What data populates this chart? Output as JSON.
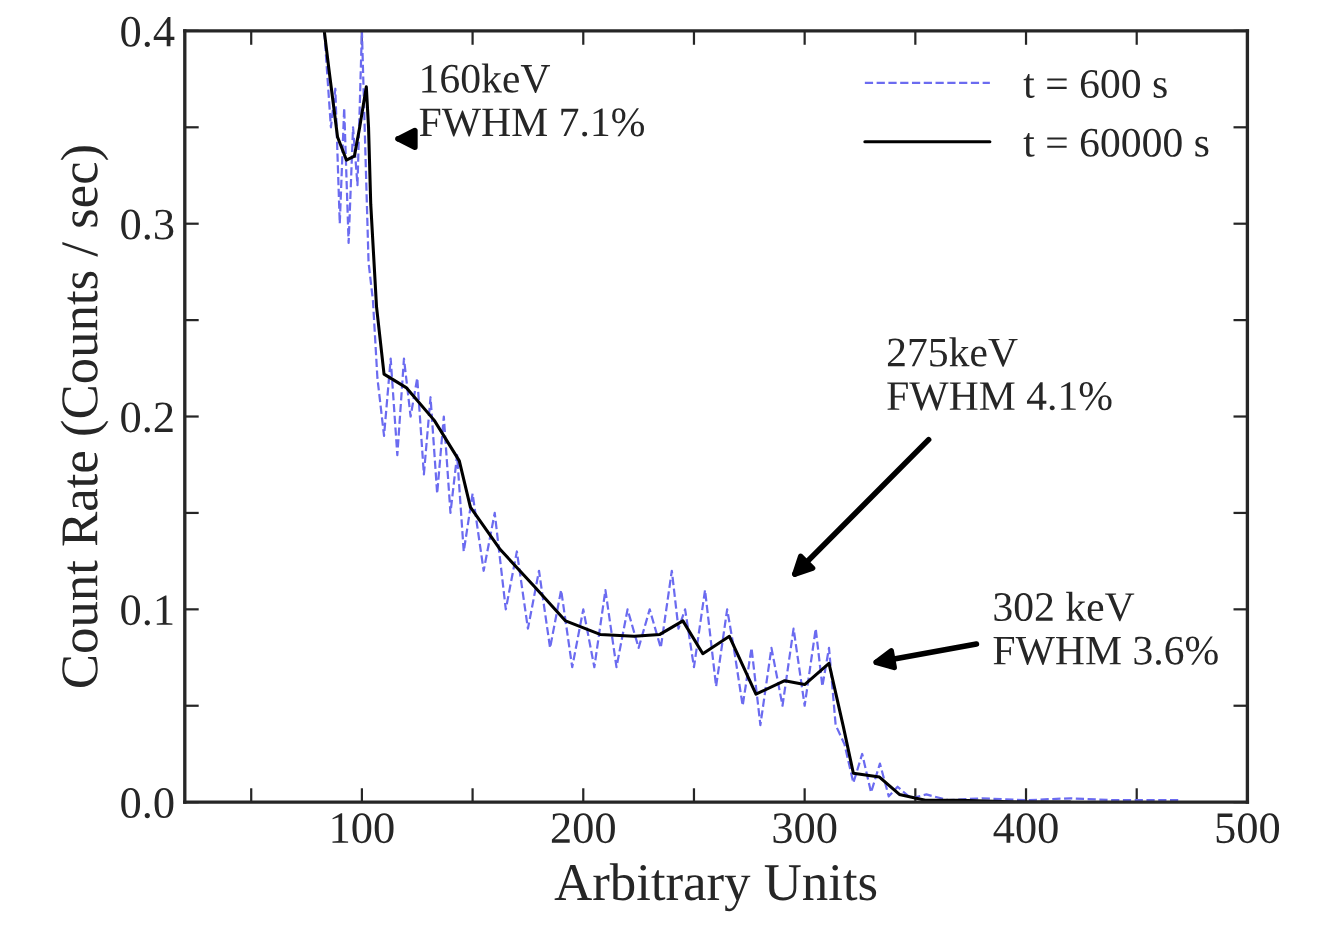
{
  "chart_data": {
    "type": "line",
    "xlabel": "Arbitrary Units",
    "ylabel": "Count Rate (Counts / sec)",
    "xlim": [
      20,
      500
    ],
    "ylim": [
      0,
      0.4
    ],
    "xticks": [
      {
        "value": 50,
        "label": null
      },
      100,
      {
        "value": 150,
        "label": null
      },
      200,
      {
        "value": 250,
        "label": null
      },
      300,
      {
        "value": 350,
        "label": null
      },
      400,
      {
        "value": 450,
        "label": null
      },
      500
    ],
    "yticks": [
      {
        "value": 0,
        "label": "0.0"
      },
      {
        "value": 0.05,
        "label": null
      },
      0.1,
      {
        "value": 0.15,
        "label": null
      },
      0.2,
      {
        "value": 0.25,
        "label": null
      },
      0.3,
      {
        "value": 0.35,
        "label": null
      },
      0.4
    ],
    "grid": false,
    "legend": "top right",
    "marker": "none",
    "series": [
      {
        "name": "t = 600 s",
        "color": "#6b6bf0",
        "line_style": "dashed",
        "x": [
          83,
          86,
          88,
          90,
          92,
          94,
          96,
          98,
          100,
          101,
          103,
          105,
          107,
          110,
          113,
          116,
          119,
          122,
          125,
          128,
          131,
          134,
          137,
          140,
          143,
          146,
          150,
          155,
          160,
          165,
          170,
          175,
          180,
          185,
          190,
          195,
          200,
          205,
          210,
          215,
          220,
          225,
          230,
          235,
          240,
          243,
          246,
          250,
          255,
          260,
          265,
          268,
          272,
          276,
          280,
          285,
          290,
          295,
          300,
          305,
          308,
          311,
          314,
          318,
          322,
          326,
          330,
          334,
          338,
          342,
          348,
          355,
          365,
          380,
          400,
          420,
          440,
          470
        ],
        "values": [
          0.4,
          0.35,
          0.37,
          0.3,
          0.36,
          0.29,
          0.35,
          0.32,
          0.4,
          0.36,
          0.28,
          0.26,
          0.22,
          0.19,
          0.23,
          0.18,
          0.23,
          0.2,
          0.22,
          0.17,
          0.21,
          0.16,
          0.2,
          0.15,
          0.18,
          0.13,
          0.16,
          0.12,
          0.15,
          0.1,
          0.13,
          0.09,
          0.12,
          0.08,
          0.11,
          0.07,
          0.1,
          0.07,
          0.11,
          0.07,
          0.1,
          0.08,
          0.1,
          0.08,
          0.12,
          0.09,
          0.1,
          0.07,
          0.11,
          0.06,
          0.1,
          0.08,
          0.05,
          0.08,
          0.04,
          0.08,
          0.05,
          0.09,
          0.05,
          0.09,
          0.06,
          0.08,
          0.04,
          0.03,
          0.01,
          0.025,
          0.005,
          0.02,
          0.003,
          0.008,
          0.002,
          0.004,
          0.001,
          0.002,
          0.001,
          0.002,
          0.001,
          0.001
        ]
      },
      {
        "name": "t = 60000 s",
        "color": "#000000",
        "line_style": "solid",
        "x": [
          83,
          85,
          89,
          93,
          96.6,
          99,
          102,
          103,
          104,
          106.6,
          110,
          120,
          132.7,
          144,
          149,
          162.5,
          177.8,
          192,
          207.6,
          223,
          234.6,
          245,
          254,
          266,
          278,
          291,
          300,
          311,
          317.5,
          322,
          333.8,
          342.8,
          354.5,
          370,
          400,
          420
        ],
        "values": [
          0.4,
          0.381,
          0.345,
          0.333,
          0.335,
          0.35,
          0.371,
          0.35,
          0.31,
          0.257,
          0.222,
          0.215,
          0.198,
          0.177,
          0.153,
          0.131,
          0.112,
          0.094,
          0.087,
          0.086,
          0.087,
          0.094,
          0.077,
          0.086,
          0.056,
          0.063,
          0.061,
          0.072,
          0.039,
          0.015,
          0.013,
          0.004,
          0.001,
          0.001,
          0,
          0
        ]
      }
    ],
    "annotations": [
      "160keV\nFWHM 7.1%",
      "275keV\nFWHM 4.1%",
      "302 keV\nFWHM 3.6%"
    ]
  }
}
